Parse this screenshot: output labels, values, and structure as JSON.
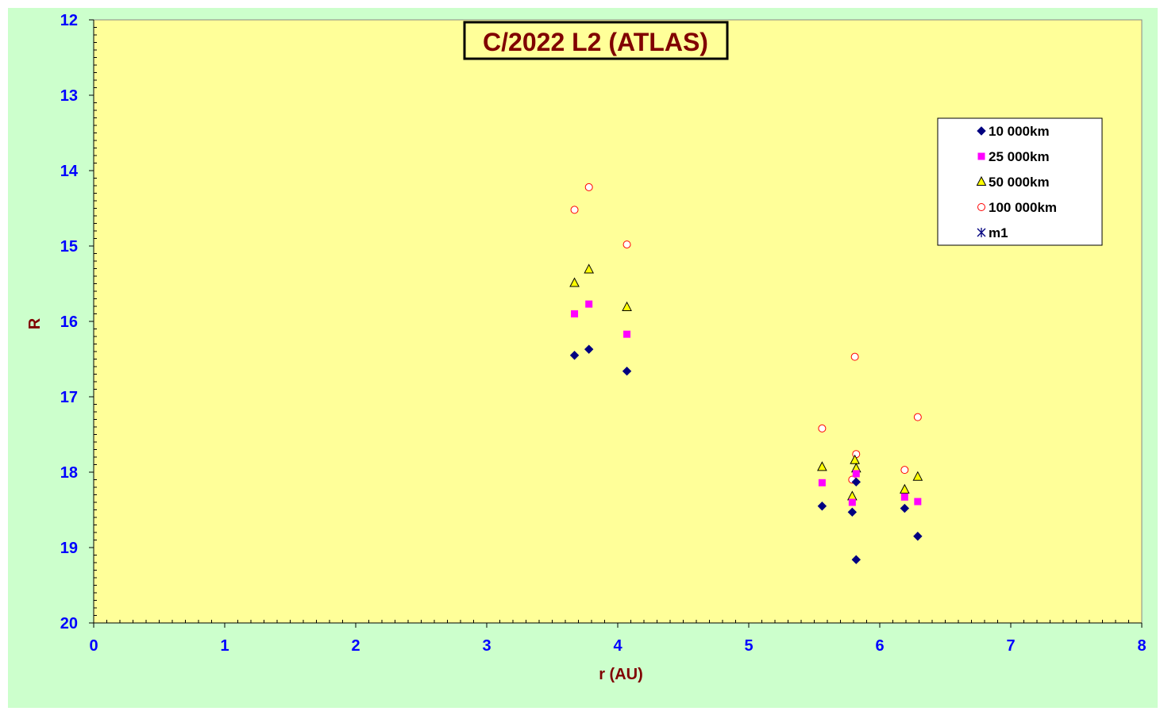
{
  "chart_data": {
    "type": "scatter",
    "title": "C/2022 L2 (ATLAS)",
    "xlabel": "r (AU)",
    "ylabel": "R",
    "xlim": [
      0,
      8
    ],
    "ylim": [
      12,
      20
    ],
    "y_inverted": true,
    "x_ticks": [
      "0",
      "1",
      "2",
      "3",
      "4",
      "5",
      "6",
      "7",
      "8"
    ],
    "y_ticks": [
      "12",
      "13",
      "14",
      "15",
      "16",
      "17",
      "18",
      "19",
      "20"
    ],
    "grid": false,
    "legend_position": "top-right",
    "colors": {
      "outer_background": "#ccffcc",
      "plot_background": "#ffff99",
      "title_text": "#800000",
      "tick_text": "#0000ff",
      "axis_title_text": "#800000"
    },
    "series": [
      {
        "name": "10 000km",
        "marker": "diamond",
        "color": "#000080",
        "points": [
          [
            3.67,
            16.45
          ],
          [
            3.78,
            16.37
          ],
          [
            4.07,
            16.66
          ],
          [
            5.56,
            18.45
          ],
          [
            5.79,
            18.53
          ],
          [
            5.82,
            18.13
          ],
          [
            5.82,
            19.16
          ],
          [
            6.19,
            18.48
          ],
          [
            6.29,
            18.85
          ]
        ]
      },
      {
        "name": "25 000km",
        "marker": "square",
        "color": "#ff00ff",
        "points": [
          [
            3.67,
            15.9
          ],
          [
            3.78,
            15.77
          ],
          [
            4.07,
            16.17
          ],
          [
            5.56,
            18.14
          ],
          [
            5.79,
            18.4
          ],
          [
            5.82,
            18.02
          ],
          [
            6.19,
            18.33
          ],
          [
            6.29,
            18.39
          ]
        ]
      },
      {
        "name": "50 000km",
        "marker": "triangle",
        "color": "#ffff00",
        "points": [
          [
            3.67,
            15.49
          ],
          [
            3.78,
            15.31
          ],
          [
            4.07,
            15.81
          ],
          [
            5.56,
            17.93
          ],
          [
            5.79,
            18.32
          ],
          [
            5.81,
            17.84
          ],
          [
            5.82,
            17.95
          ],
          [
            6.19,
            18.23
          ],
          [
            6.29,
            18.06
          ]
        ]
      },
      {
        "name": "100 000km",
        "marker": "circle",
        "color": "#ff0000",
        "points": [
          [
            3.67,
            14.52
          ],
          [
            3.78,
            14.22
          ],
          [
            4.07,
            14.98
          ],
          [
            5.56,
            17.42
          ],
          [
            5.79,
            18.1
          ],
          [
            5.81,
            16.47
          ],
          [
            5.82,
            17.76
          ],
          [
            6.19,
            17.97
          ],
          [
            6.29,
            17.27
          ]
        ]
      },
      {
        "name": "m1",
        "marker": "asterisk",
        "color": "#000080",
        "points": []
      }
    ]
  }
}
